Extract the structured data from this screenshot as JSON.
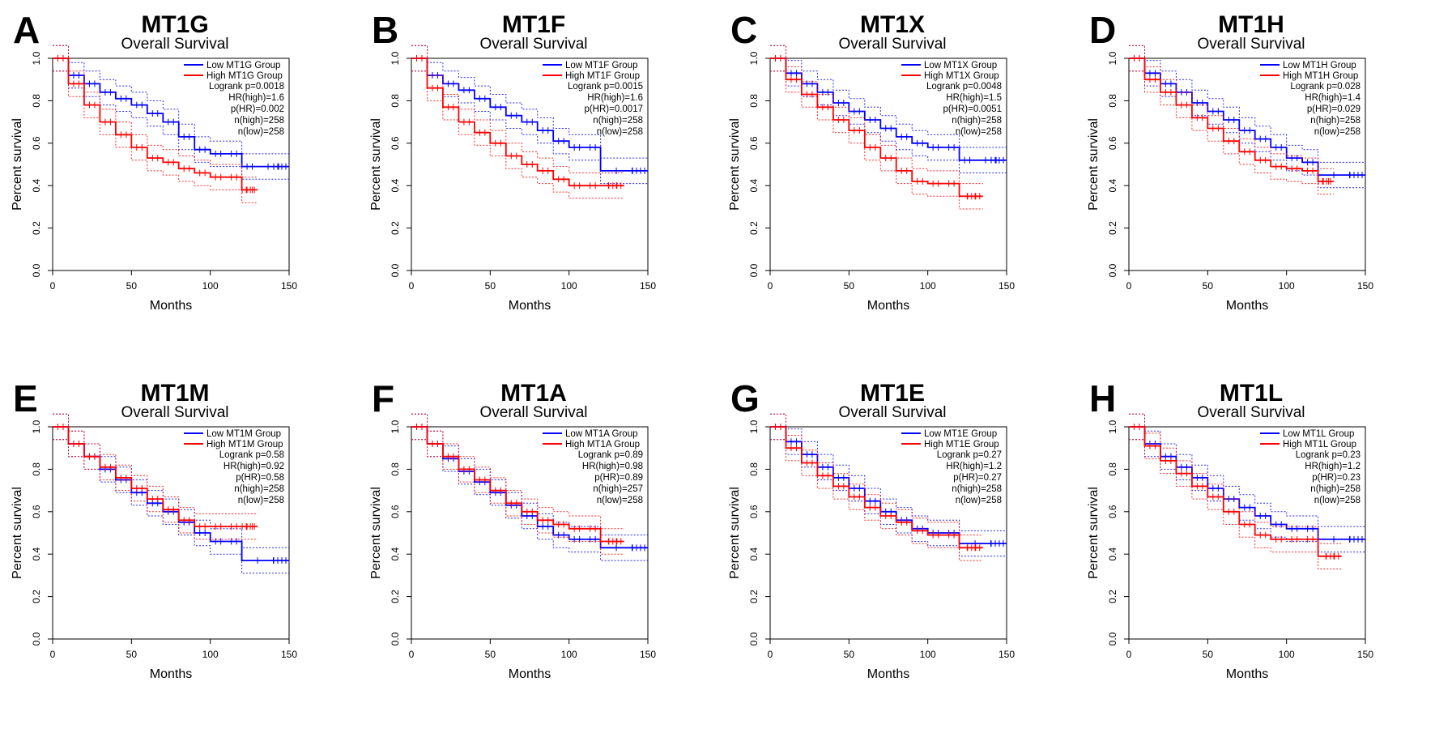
{
  "figure": {
    "panels": [
      {
        "letter": "A",
        "gene": "MT1G",
        "subtitle": "Overall Survival",
        "legend": {
          "low": "Low MT1G Group",
          "high": "High MT1G Group"
        },
        "stats": [
          "Logrank p=0.0018",
          "HR(high)=1.6",
          "p(HR)=0.002",
          "n(high)=258",
          "n(low)=258"
        ]
      },
      {
        "letter": "B",
        "gene": "MT1F",
        "subtitle": "Overall Survival",
        "legend": {
          "low": "Low MT1F Group",
          "high": "High MT1F Group"
        },
        "stats": [
          "Logrank p=0.0015",
          "HR(high)=1.6",
          "p(HR)=0.0017",
          "n(high)=258",
          "n(low)=258"
        ]
      },
      {
        "letter": "C",
        "gene": "MT1X",
        "subtitle": "Overall Survival",
        "legend": {
          "low": "Low MT1X Group",
          "high": "High MT1X Group"
        },
        "stats": [
          "Logrank p=0.0048",
          "HR(high)=1.5",
          "p(HR)=0.0051",
          "n(high)=258",
          "n(low)=258"
        ]
      },
      {
        "letter": "D",
        "gene": "MT1H",
        "subtitle": "Overall Survival",
        "legend": {
          "low": "Low MT1H Group",
          "high": "High MT1H Group"
        },
        "stats": [
          "Logrank p=0.028",
          "HR(high)=1.4",
          "p(HR)=0.029",
          "n(high)=258",
          "n(low)=258"
        ]
      },
      {
        "letter": "E",
        "gene": "MT1M",
        "subtitle": "Overall Survival",
        "legend": {
          "low": "Low MT1M Group",
          "high": "High MT1M Group"
        },
        "stats": [
          "Logrank p=0.58",
          "HR(high)=0.92",
          "p(HR)=0.58",
          "n(high)=258",
          "n(low)=258"
        ]
      },
      {
        "letter": "F",
        "gene": "MT1A",
        "subtitle": "Overall Survival",
        "legend": {
          "low": "Low MT1A Group",
          "high": "High MT1A Group"
        },
        "stats": [
          "Logrank p=0.89",
          "HR(high)=0.98",
          "p(HR)=0.89",
          "n(high)=257",
          "n(low)=258"
        ]
      },
      {
        "letter": "G",
        "gene": "MT1E",
        "subtitle": "Overall Survival",
        "legend": {
          "low": "Low MT1E Group",
          "high": "High MT1E Group"
        },
        "stats": [
          "Logrank p=0.27",
          "HR(high)=1.2",
          "p(HR)=0.27",
          "n(high)=258",
          "n(low)=258"
        ]
      },
      {
        "letter": "H",
        "gene": "MT1L",
        "subtitle": "Overall Survival",
        "legend": {
          "low": "Low MT1L Group",
          "high": "High MT1L Group"
        },
        "stats": [
          "Logrank p=0.23",
          "HR(high)=1.2",
          "p(HR)=0.23",
          "n(high)=258",
          "n(low)=258"
        ]
      }
    ]
  },
  "chart_data": [
    {
      "type": "line",
      "title": "MT1G",
      "subtitle": "Overall Survival",
      "xlabel": "Months",
      "ylabel": "Percent survival",
      "xlim": [
        0,
        150
      ],
      "ylim": [
        0,
        1
      ],
      "xticks": [
        "0",
        "50",
        "100",
        "150"
      ],
      "yticks": [
        "0.0",
        "0.2",
        "0.4",
        "0.6",
        "0.8",
        "1.0"
      ],
      "legend_position": "top-right",
      "series": [
        {
          "name": "Low MT1G Group",
          "color": "#0000ff",
          "x": [
            0,
            10,
            20,
            30,
            40,
            50,
            60,
            70,
            80,
            90,
            100,
            110,
            120,
            130,
            150
          ],
          "y": [
            1.0,
            0.92,
            0.88,
            0.84,
            0.81,
            0.78,
            0.74,
            0.7,
            0.63,
            0.57,
            0.55,
            0.55,
            0.49,
            0.49,
            0.49
          ]
        },
        {
          "name": "High MT1G Group",
          "color": "#ff0000",
          "x": [
            0,
            10,
            20,
            30,
            40,
            50,
            60,
            70,
            80,
            90,
            100,
            110,
            120,
            130
          ],
          "y": [
            1.0,
            0.88,
            0.78,
            0.7,
            0.64,
            0.58,
            0.53,
            0.51,
            0.48,
            0.46,
            0.44,
            0.44,
            0.38,
            0.38
          ]
        }
      ]
    },
    {
      "type": "line",
      "title": "MT1F",
      "subtitle": "Overall Survival",
      "xlabel": "Months",
      "ylabel": "Percent survival",
      "xlim": [
        0,
        150
      ],
      "ylim": [
        0,
        1
      ],
      "xticks": [
        "0",
        "50",
        "100",
        "150"
      ],
      "yticks": [
        "0.0",
        "0.2",
        "0.4",
        "0.6",
        "0.8",
        "1.0"
      ],
      "legend_position": "top-right",
      "series": [
        {
          "name": "Low MT1F Group",
          "color": "#0000ff",
          "x": [
            0,
            10,
            20,
            30,
            40,
            50,
            60,
            70,
            80,
            90,
            100,
            110,
            120,
            150
          ],
          "y": [
            1.0,
            0.92,
            0.88,
            0.85,
            0.81,
            0.77,
            0.73,
            0.7,
            0.66,
            0.61,
            0.58,
            0.58,
            0.47,
            0.47
          ]
        },
        {
          "name": "High MT1F Group",
          "color": "#ff0000",
          "x": [
            0,
            10,
            20,
            30,
            40,
            50,
            60,
            70,
            80,
            90,
            100,
            110,
            120,
            135
          ],
          "y": [
            1.0,
            0.86,
            0.77,
            0.7,
            0.65,
            0.6,
            0.54,
            0.5,
            0.47,
            0.43,
            0.4,
            0.4,
            0.4,
            0.4
          ]
        }
      ]
    },
    {
      "type": "line",
      "title": "MT1X",
      "subtitle": "Overall Survival",
      "xlabel": "Months",
      "ylabel": "Percent survival",
      "xlim": [
        0,
        150
      ],
      "ylim": [
        0,
        1
      ],
      "xticks": [
        "0",
        "50",
        "100",
        "150"
      ],
      "yticks": [
        "0.0",
        "0.2",
        "0.4",
        "0.6",
        "0.8",
        "1.0"
      ],
      "legend_position": "top-right",
      "series": [
        {
          "name": "Low MT1X Group",
          "color": "#0000ff",
          "x": [
            0,
            10,
            20,
            30,
            40,
            50,
            60,
            70,
            80,
            90,
            100,
            110,
            120,
            130,
            150
          ],
          "y": [
            1.0,
            0.93,
            0.88,
            0.84,
            0.79,
            0.75,
            0.71,
            0.67,
            0.63,
            0.6,
            0.58,
            0.58,
            0.52,
            0.52,
            0.52
          ]
        },
        {
          "name": "High MT1X Group",
          "color": "#ff0000",
          "x": [
            0,
            10,
            20,
            30,
            40,
            50,
            60,
            70,
            80,
            90,
            100,
            110,
            120,
            135
          ],
          "y": [
            1.0,
            0.9,
            0.83,
            0.77,
            0.71,
            0.66,
            0.58,
            0.53,
            0.47,
            0.42,
            0.41,
            0.41,
            0.35,
            0.35
          ]
        }
      ]
    },
    {
      "type": "line",
      "title": "MT1H",
      "subtitle": "Overall Survival",
      "xlabel": "Months",
      "ylabel": "Percent survival",
      "xlim": [
        0,
        150
      ],
      "ylim": [
        0,
        1
      ],
      "xticks": [
        "0",
        "50",
        "100",
        "150"
      ],
      "yticks": [
        "0.0",
        "0.2",
        "0.4",
        "0.6",
        "0.8",
        "1.0"
      ],
      "legend_position": "top-right",
      "series": [
        {
          "name": "Low MT1H Group",
          "color": "#0000ff",
          "x": [
            0,
            10,
            20,
            30,
            40,
            50,
            60,
            70,
            80,
            90,
            100,
            110,
            120,
            150
          ],
          "y": [
            1.0,
            0.93,
            0.88,
            0.84,
            0.79,
            0.75,
            0.71,
            0.66,
            0.62,
            0.58,
            0.53,
            0.51,
            0.45,
            0.45
          ]
        },
        {
          "name": "High MT1H Group",
          "color": "#ff0000",
          "x": [
            0,
            10,
            20,
            30,
            40,
            50,
            60,
            70,
            80,
            90,
            100,
            110,
            120,
            130
          ],
          "y": [
            1.0,
            0.9,
            0.84,
            0.78,
            0.72,
            0.67,
            0.61,
            0.56,
            0.52,
            0.49,
            0.48,
            0.47,
            0.42,
            0.42
          ]
        }
      ]
    },
    {
      "type": "line",
      "title": "MT1M",
      "subtitle": "Overall Survival",
      "xlabel": "Months",
      "ylabel": "Percent survival",
      "xlim": [
        0,
        150
      ],
      "ylim": [
        0,
        1
      ],
      "xticks": [
        "0",
        "50",
        "100",
        "150"
      ],
      "yticks": [
        "0.0",
        "0.2",
        "0.4",
        "0.6",
        "0.8",
        "1.0"
      ],
      "legend_position": "top-right",
      "series": [
        {
          "name": "Low MT1M Group",
          "color": "#0000ff",
          "x": [
            0,
            10,
            20,
            30,
            40,
            50,
            60,
            70,
            80,
            90,
            100,
            110,
            120,
            150
          ],
          "y": [
            1.0,
            0.92,
            0.86,
            0.8,
            0.75,
            0.69,
            0.64,
            0.6,
            0.55,
            0.5,
            0.46,
            0.46,
            0.37,
            0.37
          ]
        },
        {
          "name": "High MT1M Group",
          "color": "#ff0000",
          "x": [
            0,
            10,
            20,
            30,
            40,
            50,
            60,
            70,
            80,
            90,
            100,
            110,
            120,
            130
          ],
          "y": [
            1.0,
            0.92,
            0.86,
            0.81,
            0.76,
            0.71,
            0.66,
            0.61,
            0.56,
            0.53,
            0.53,
            0.53,
            0.53,
            0.53
          ]
        }
      ]
    },
    {
      "type": "line",
      "title": "MT1A",
      "subtitle": "Overall Survival",
      "xlabel": "Months",
      "ylabel": "Percent survival",
      "xlim": [
        0,
        150
      ],
      "ylim": [
        0,
        1
      ],
      "xticks": [
        "0",
        "50",
        "100",
        "150"
      ],
      "yticks": [
        "0.0",
        "0.2",
        "0.4",
        "0.6",
        "0.8",
        "1.0"
      ],
      "legend_position": "top-right",
      "series": [
        {
          "name": "Low MT1A Group",
          "color": "#0000ff",
          "x": [
            0,
            10,
            20,
            30,
            40,
            50,
            60,
            70,
            80,
            90,
            100,
            110,
            120,
            150
          ],
          "y": [
            1.0,
            0.92,
            0.85,
            0.79,
            0.74,
            0.69,
            0.63,
            0.58,
            0.53,
            0.49,
            0.47,
            0.47,
            0.43,
            0.43
          ]
        },
        {
          "name": "High MT1A Group",
          "color": "#ff0000",
          "x": [
            0,
            10,
            20,
            30,
            40,
            50,
            60,
            70,
            80,
            90,
            100,
            110,
            120,
            135
          ],
          "y": [
            1.0,
            0.92,
            0.86,
            0.8,
            0.75,
            0.7,
            0.64,
            0.6,
            0.56,
            0.54,
            0.52,
            0.52,
            0.46,
            0.46
          ]
        }
      ]
    },
    {
      "type": "line",
      "title": "MT1E",
      "subtitle": "Overall Survival",
      "xlabel": "Months",
      "ylabel": "Percent survival",
      "xlim": [
        0,
        150
      ],
      "ylim": [
        0,
        1
      ],
      "xticks": [
        "0",
        "50",
        "100",
        "150"
      ],
      "yticks": [
        "0.0",
        "0.2",
        "0.4",
        "0.6",
        "0.8",
        "1.0"
      ],
      "legend_position": "top-right",
      "series": [
        {
          "name": "Low MT1E Group",
          "color": "#0000ff",
          "x": [
            0,
            10,
            20,
            30,
            40,
            50,
            60,
            70,
            80,
            90,
            100,
            110,
            120,
            150
          ],
          "y": [
            1.0,
            0.93,
            0.87,
            0.81,
            0.76,
            0.71,
            0.65,
            0.6,
            0.56,
            0.52,
            0.5,
            0.5,
            0.45,
            0.45
          ]
        },
        {
          "name": "High MT1E Group",
          "color": "#ff0000",
          "x": [
            0,
            10,
            20,
            30,
            40,
            50,
            60,
            70,
            80,
            90,
            100,
            110,
            120,
            135
          ],
          "y": [
            1.0,
            0.9,
            0.83,
            0.77,
            0.72,
            0.67,
            0.62,
            0.58,
            0.55,
            0.51,
            0.49,
            0.49,
            0.43,
            0.43
          ]
        }
      ]
    },
    {
      "type": "line",
      "title": "MT1L",
      "subtitle": "Overall Survival",
      "xlabel": "Months",
      "ylabel": "Percent survival",
      "xlim": [
        0,
        150
      ],
      "ylim": [
        0,
        1
      ],
      "xticks": [
        "0",
        "50",
        "100",
        "150"
      ],
      "yticks": [
        "0.0",
        "0.2",
        "0.4",
        "0.6",
        "0.8",
        "1.0"
      ],
      "legend_position": "top-right",
      "series": [
        {
          "name": "Low MT1L Group",
          "color": "#0000ff",
          "x": [
            0,
            10,
            20,
            30,
            40,
            50,
            60,
            70,
            80,
            90,
            100,
            110,
            120,
            150
          ],
          "y": [
            1.0,
            0.92,
            0.86,
            0.81,
            0.76,
            0.71,
            0.66,
            0.62,
            0.58,
            0.54,
            0.52,
            0.52,
            0.47,
            0.47
          ]
        },
        {
          "name": "High MT1L Group",
          "color": "#ff0000",
          "x": [
            0,
            10,
            20,
            30,
            40,
            50,
            60,
            70,
            80,
            90,
            100,
            110,
            120,
            135
          ],
          "y": [
            1.0,
            0.91,
            0.84,
            0.78,
            0.72,
            0.67,
            0.6,
            0.54,
            0.49,
            0.47,
            0.47,
            0.47,
            0.39,
            0.39
          ]
        }
      ]
    }
  ]
}
